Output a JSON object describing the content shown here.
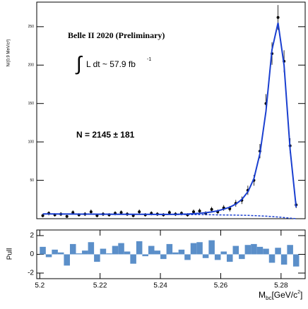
{
  "chart_data": [
    {
      "type": "scatter",
      "ylabel": "N/(0.9 MeV/c²)",
      "annotations": [
        "Belle II 2020 (Preliminary)",
        "∫",
        "L dt ~ 57.9 fb",
        "-1",
        "N = 2145 ± 181"
      ],
      "x": [
        5.201,
        5.203,
        5.205,
        5.207,
        5.209,
        5.211,
        5.213,
        5.215,
        5.217,
        5.219,
        5.221,
        5.223,
        5.225,
        5.227,
        5.229,
        5.231,
        5.233,
        5.235,
        5.237,
        5.239,
        5.241,
        5.243,
        5.245,
        5.247,
        5.249,
        5.251,
        5.253,
        5.255,
        5.257,
        5.259,
        5.261,
        5.263,
        5.265,
        5.267,
        5.269,
        5.271,
        5.273,
        5.275,
        5.277,
        5.279,
        5.281,
        5.283,
        5.285
      ],
      "series": [
        {
          "name": "data",
          "style": "points",
          "color": "#000000",
          "values": [
            4,
            7,
            5,
            6,
            3,
            8,
            5,
            6,
            9,
            4,
            6,
            5,
            7,
            8,
            6,
            4,
            9,
            5,
            7,
            6,
            5,
            8,
            6,
            7,
            5,
            9,
            10,
            7,
            12,
            9,
            14,
            13,
            20,
            24,
            37,
            50,
            88,
            150,
            215,
            262,
            205,
            95,
            18
          ]
        },
        {
          "name": "fit",
          "style": "solid",
          "color": "#1a3fd0",
          "values": [
            6.2,
            6.2,
            6.2,
            6.1,
            6.1,
            6.1,
            6.0,
            6.0,
            6.0,
            5.9,
            5.9,
            5.9,
            5.8,
            5.8,
            5.8,
            5.7,
            5.7,
            5.7,
            5.6,
            5.6,
            5.6,
            5.6,
            5.7,
            5.9,
            6.1,
            6.5,
            7.0,
            7.8,
            8.8,
            10.3,
            12.5,
            15,
            19,
            25,
            35,
            52,
            85,
            140,
            220,
            255,
            200,
            90,
            15
          ]
        },
        {
          "name": "background",
          "style": "dashed",
          "color": "#1a3fd0",
          "values": [
            6.2,
            6.2,
            6.2,
            6.1,
            6.1,
            6.1,
            6.0,
            6.0,
            6.0,
            5.9,
            5.9,
            5.9,
            5.8,
            5.8,
            5.8,
            5.7,
            5.7,
            5.7,
            5.6,
            5.6,
            5.5,
            5.5,
            5.4,
            5.4,
            5.3,
            5.3,
            5.2,
            5.2,
            5.1,
            5.0,
            4.9,
            4.8,
            4.7,
            4.5,
            4.3,
            4.0,
            3.7,
            3.3,
            2.8,
            2.2,
            1.5,
            0.7,
            0.1
          ]
        }
      ],
      "xlim": [
        5.199,
        5.288
      ],
      "ylim": [
        0,
        282
      ],
      "yticks": [
        50,
        100,
        150,
        200,
        250
      ]
    },
    {
      "type": "bar",
      "ylabel": "Pull",
      "xlabel": [
        "M",
        "bc",
        "[GeV/c",
        "2",
        "]"
      ],
      "color": "#5b8fc9",
      "x": [
        5.201,
        5.203,
        5.205,
        5.207,
        5.209,
        5.211,
        5.213,
        5.215,
        5.217,
        5.219,
        5.221,
        5.223,
        5.225,
        5.227,
        5.229,
        5.231,
        5.233,
        5.235,
        5.237,
        5.239,
        5.241,
        5.243,
        5.245,
        5.247,
        5.249,
        5.251,
        5.253,
        5.255,
        5.257,
        5.259,
        5.261,
        5.263,
        5.265,
        5.267,
        5.269,
        5.271,
        5.273,
        5.275,
        5.277,
        5.279,
        5.281,
        5.283,
        5.285
      ],
      "values": [
        0.8,
        -0.3,
        0.5,
        0.2,
        -1.2,
        1.1,
        0.1,
        0.4,
        1.3,
        -0.8,
        0.6,
        0.1,
        0.9,
        1.2,
        0.3,
        -1.0,
        1.4,
        -0.2,
        0.9,
        0.4,
        -0.5,
        1.1,
        0.2,
        0.5,
        -0.6,
        1.2,
        1.3,
        -0.4,
        1.5,
        -0.6,
        0.3,
        -0.8,
        0.9,
        -0.5,
        1.0,
        1.1,
        0.8,
        0.6,
        -0.9,
        0.7,
        -1.1,
        1.0,
        -1.3
      ],
      "xlim": [
        5.199,
        5.288
      ],
      "ylim": [
        -2.6,
        2.6
      ],
      "yticks": [
        -2,
        0,
        2
      ],
      "xticks": [
        5.2,
        5.22,
        5.24,
        5.26,
        5.28
      ]
    }
  ]
}
